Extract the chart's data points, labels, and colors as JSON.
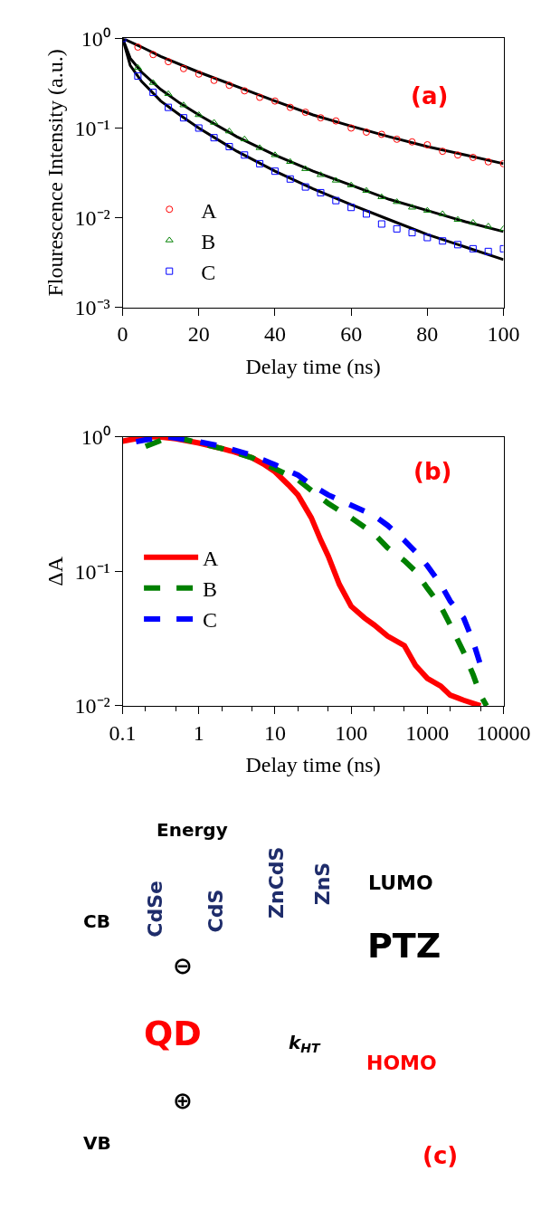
{
  "chart_data": [
    {
      "type": "scatter",
      "xlabel": "Delay time (ns)",
      "ylabel": "Flourescence Intensity (a.u.)",
      "annotations": [
        "(a)"
      ],
      "log": "y",
      "legend": "bottom left",
      "xlim": [
        0,
        100
      ],
      "xticks": [
        0,
        20,
        40,
        60,
        80,
        100
      ],
      "ylim": [
        0.001,
        1
      ],
      "yticks": [
        {
          "value": 0.001,
          "label": "10⁻³"
        },
        {
          "value": 0.01,
          "label": "10⁻²"
        },
        {
          "value": 0.1,
          "label": "10⁻¹"
        },
        {
          "value": 1,
          "label": "10⁰"
        }
      ],
      "x": [
        0,
        4,
        8,
        12,
        16,
        20,
        24,
        28,
        32,
        36,
        40,
        44,
        48,
        52,
        56,
        60,
        64,
        68,
        72,
        76,
        80,
        84,
        88,
        92,
        96,
        100
      ],
      "series": [
        {
          "name": "A",
          "color": "#ff0000",
          "marker": "circle",
          "values": [
            null,
            0.8,
            0.66,
            0.55,
            0.46,
            0.4,
            0.34,
            0.3,
            0.26,
            0.22,
            0.2,
            0.17,
            0.15,
            0.13,
            0.12,
            0.1,
            0.09,
            0.085,
            0.075,
            0.07,
            0.065,
            0.055,
            0.05,
            0.047,
            0.042,
            0.04
          ]
        },
        {
          "name": "B",
          "color": "#008000",
          "marker": "triangle",
          "values": [
            null,
            0.47,
            0.32,
            0.24,
            0.18,
            0.14,
            0.115,
            0.092,
            0.075,
            0.06,
            0.05,
            0.042,
            0.035,
            0.03,
            0.026,
            0.023,
            0.02,
            0.017,
            0.015,
            0.013,
            0.012,
            0.011,
            0.0095,
            0.0088,
            0.008,
            0.0075
          ]
        },
        {
          "name": "C",
          "color": "#0000ff",
          "marker": "square",
          "values": [
            1.0,
            0.38,
            0.25,
            0.17,
            0.13,
            0.1,
            0.078,
            0.062,
            0.05,
            0.04,
            0.033,
            0.027,
            0.022,
            0.019,
            0.0155,
            0.013,
            0.011,
            0.0085,
            0.0075,
            0.0068,
            0.006,
            0.0055,
            0.005,
            0.0045,
            0.0042,
            0.0045
          ]
        },
        {
          "type": "line",
          "color": "#000000",
          "marker": "none",
          "x": [
            0,
            5,
            10,
            20,
            30,
            40,
            50,
            60,
            70,
            80,
            90,
            100
          ],
          "values": [
            1.0,
            0.8,
            0.63,
            0.42,
            0.29,
            0.2,
            0.14,
            0.105,
            0.08,
            0.062,
            0.05,
            0.04
          ]
        },
        {
          "type": "line",
          "color": "#000000",
          "marker": "none",
          "x": [
            0,
            2,
            5,
            10,
            15,
            20,
            30,
            40,
            50,
            60,
            70,
            80,
            90,
            100
          ],
          "values": [
            1.0,
            0.6,
            0.42,
            0.27,
            0.19,
            0.14,
            0.08,
            0.05,
            0.033,
            0.023,
            0.016,
            0.012,
            0.009,
            0.007
          ]
        },
        {
          "type": "line",
          "color": "#000000",
          "marker": "none",
          "x": [
            0,
            2,
            5,
            10,
            15,
            20,
            30,
            40,
            50,
            60,
            70,
            80,
            90,
            100
          ],
          "values": [
            1.0,
            0.5,
            0.33,
            0.2,
            0.14,
            0.1,
            0.055,
            0.033,
            0.021,
            0.014,
            0.0095,
            0.0065,
            0.0047,
            0.0034
          ]
        }
      ]
    },
    {
      "type": "line",
      "xlabel": "Delay time (ns)",
      "ylabel": "ΔA",
      "annotations": [
        "(b)"
      ],
      "log": "xy",
      "legend": "left",
      "xlim": [
        0.1,
        10000
      ],
      "xticks": [
        0.1,
        1,
        10,
        100,
        1000,
        10000
      ],
      "ylim": [
        0.01,
        1
      ],
      "yticks": [
        {
          "value": 0.01,
          "label": "10⁻²"
        },
        {
          "value": 0.1,
          "label": "10⁻¹"
        },
        {
          "value": 1,
          "label": "10⁰"
        }
      ],
      "series": [
        {
          "name": "A",
          "color": "#ff0000",
          "line_style": "solid",
          "x": [
            0.1,
            0.2,
            0.3,
            0.5,
            1,
            2,
            3,
            5,
            7,
            10,
            15,
            20,
            30,
            40,
            50,
            70,
            100,
            150,
            200,
            300,
            500,
            700,
            1000,
            1500,
            2000,
            3000,
            5000
          ],
          "values": [
            0.93,
            1.0,
            1.0,
            0.97,
            0.9,
            0.82,
            0.77,
            0.7,
            0.63,
            0.55,
            0.44,
            0.37,
            0.25,
            0.17,
            0.13,
            0.08,
            0.055,
            0.045,
            0.04,
            0.033,
            0.028,
            0.02,
            0.016,
            0.014,
            0.012,
            0.011,
            0.01
          ]
        },
        {
          "name": "B",
          "color": "#008000",
          "line_style": "dashed",
          "x": [
            0.2,
            0.3,
            0.4,
            0.6,
            1,
            2,
            5,
            10,
            20,
            30,
            50,
            100,
            200,
            300,
            500,
            700,
            1000,
            1500,
            2000,
            3000,
            4000,
            5000,
            6000
          ],
          "values": [
            0.85,
            0.93,
            1.0,
            0.97,
            0.9,
            0.82,
            0.7,
            0.58,
            0.48,
            0.4,
            0.32,
            0.25,
            0.19,
            0.15,
            0.12,
            0.1,
            0.075,
            0.055,
            0.04,
            0.025,
            0.017,
            0.012,
            0.01
          ]
        },
        {
          "name": "C",
          "color": "#0000ff",
          "line_style": "dashed",
          "x": [
            0.15,
            0.2,
            0.3,
            0.4,
            1,
            2,
            5,
            10,
            20,
            30,
            50,
            100,
            200,
            300,
            500,
            700,
            1000,
            1500,
            2000,
            3000,
            4000,
            5000
          ],
          "values": [
            0.92,
            0.95,
            0.98,
            1.0,
            0.92,
            0.85,
            0.73,
            0.62,
            0.52,
            0.44,
            0.37,
            0.31,
            0.26,
            0.22,
            0.17,
            0.14,
            0.11,
            0.08,
            0.06,
            0.045,
            0.03,
            0.02
          ]
        }
      ]
    },
    {
      "type": "other",
      "annotations": [
        "Energy",
        "CB",
        "VB",
        "CdSe",
        "CdS",
        "ZnCdS",
        "ZnS",
        "⊖",
        "⊕",
        "QD",
        "k$_{HT}$",
        "LUMO",
        "PTZ",
        "HOMO",
        "(c)"
      ]
    }
  ]
}
